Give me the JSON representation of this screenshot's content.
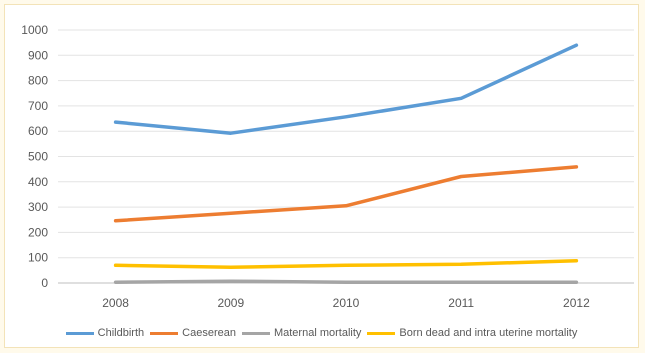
{
  "chart_data": {
    "type": "line",
    "categories": [
      "2008",
      "2009",
      "2010",
      "2011",
      "2012"
    ],
    "series": [
      {
        "name": "Childbirth",
        "color": "#5b9bd5",
        "values": [
          636,
          592,
          657,
          730,
          940
        ]
      },
      {
        "name": "Caeserean",
        "color": "#ed7d31",
        "values": [
          246,
          276,
          305,
          421,
          459
        ]
      },
      {
        "name": "Maternal mortality",
        "color": "#a5a5a5",
        "values": [
          3,
          7,
          3,
          3,
          3
        ]
      },
      {
        "name": "Born dead and intra uterine mortality",
        "color": "#ffc000",
        "values": [
          70,
          62,
          70,
          74,
          88
        ]
      }
    ],
    "ylim": [
      0,
      1000
    ],
    "yticks": [
      "0",
      "100",
      "200",
      "300",
      "400",
      "500",
      "600",
      "700",
      "800",
      "900",
      "1000"
    ],
    "grid": true,
    "legend_position": "bottom"
  }
}
